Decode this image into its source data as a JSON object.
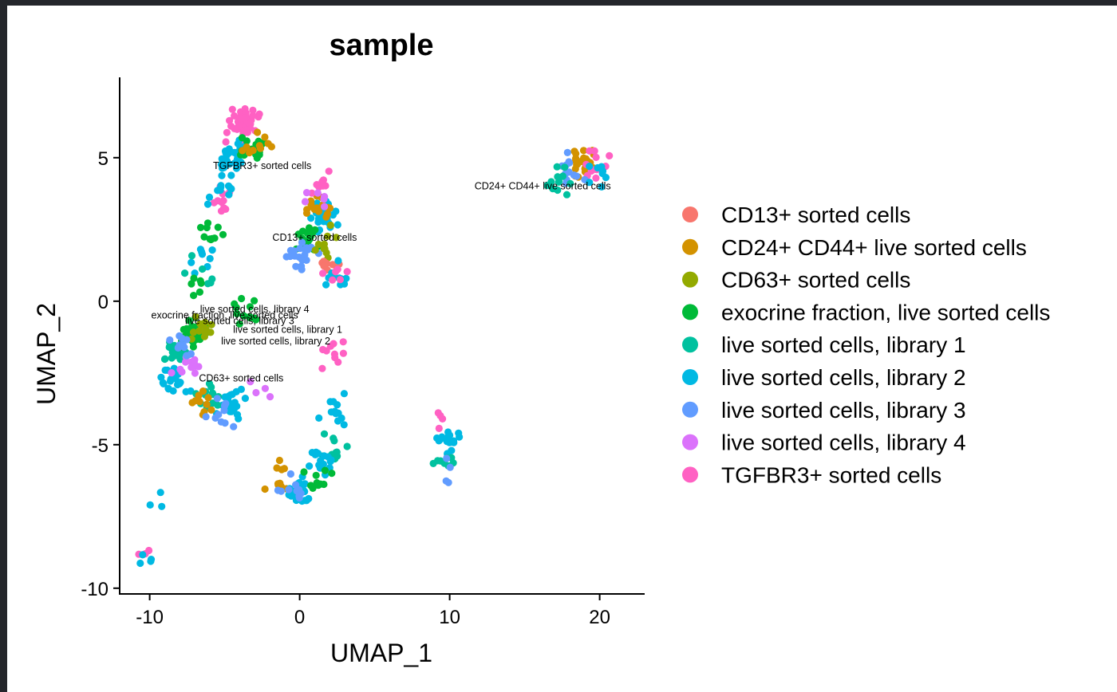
{
  "chart_data": {
    "type": "scatter",
    "title": "sample",
    "xlabel": "UMAP_1",
    "ylabel": "UMAP_2",
    "xlim": [
      -12,
      23
    ],
    "ylim": [
      -10.2,
      7.8
    ],
    "xticks": [
      -10,
      0,
      10,
      20
    ],
    "xtick_labels": [
      "-10",
      "0",
      "10",
      "20"
    ],
    "yticks": [
      -10,
      -5,
      0,
      5
    ],
    "ytick_labels": [
      "-10",
      "-5",
      "0",
      "5"
    ],
    "grid": false,
    "legend_position": "right",
    "series": [
      {
        "name": "CD13+ sorted cells",
        "color": "#F8766D"
      },
      {
        "name": "CD24+ CD44+ live sorted cells",
        "color": "#D39200"
      },
      {
        "name": "CD63+ sorted cells",
        "color": "#93AA00"
      },
      {
        "name": "exocrine fraction, live sorted cells",
        "color": "#00BA38"
      },
      {
        "name": "live sorted cells, library 1",
        "color": "#00C19F"
      },
      {
        "name": "live sorted cells, library 2",
        "color": "#00B9E3"
      },
      {
        "name": "live sorted cells, library 3",
        "color": "#619CFF"
      },
      {
        "name": "live sorted cells, library 4",
        "color": "#DB72FB"
      },
      {
        "name": "TGFBR3+ sorted cells",
        "color": "#FF61C3"
      }
    ],
    "annotations": [
      {
        "text": "TGFBR3+ sorted cells",
        "x": -2.5,
        "y": 4.6
      },
      {
        "text": "CD24+ CD44+ live sorted cells",
        "x": 16.2,
        "y": 3.9
      },
      {
        "text": "CD13+ sorted cells",
        "x": 1.0,
        "y": 2.1
      },
      {
        "text": "live sorted cells, library 4",
        "x": -3.0,
        "y": -0.4
      },
      {
        "text": "exocrine fraction, live sorted cells",
        "x": -5.0,
        "y": -0.6
      },
      {
        "text": "live sorted cells, library 3",
        "x": -4.0,
        "y": -0.8
      },
      {
        "text": "live sorted cells, library 1",
        "x": -0.8,
        "y": -1.1
      },
      {
        "text": "live sorted cells, library 2",
        "x": -1.6,
        "y": -1.5
      },
      {
        "text": "CD63+ sorted cells",
        "x": -3.9,
        "y": -2.8
      }
    ],
    "clusters": [
      {
        "series": 8,
        "x": -3.8,
        "y": 6.2,
        "n": 45
      },
      {
        "series": 5,
        "x": -4.5,
        "y": 5.0,
        "n": 30
      },
      {
        "series": 3,
        "x": -3.2,
        "y": 5.3,
        "n": 20
      },
      {
        "series": 1,
        "x": -2.8,
        "y": 5.4,
        "n": 10
      },
      {
        "series": 8,
        "x": -5.2,
        "y": 3.5,
        "n": 10
      },
      {
        "series": 5,
        "x": -5.3,
        "y": 3.8,
        "n": 12
      },
      {
        "series": 3,
        "x": -5.6,
        "y": 2.5,
        "n": 10
      },
      {
        "series": 5,
        "x": -6.4,
        "y": 1.4,
        "n": 8
      },
      {
        "series": 4,
        "x": -6.5,
        "y": 1.0,
        "n": 6
      },
      {
        "series": 3,
        "x": -6.8,
        "y": 0.6,
        "n": 6
      },
      {
        "series": 5,
        "x": 1.5,
        "y": 3.0,
        "n": 30
      },
      {
        "series": 1,
        "x": 1.2,
        "y": 3.2,
        "n": 15
      },
      {
        "series": 3,
        "x": 0.5,
        "y": 2.2,
        "n": 20
      },
      {
        "series": 6,
        "x": 0.2,
        "y": 1.6,
        "n": 20
      },
      {
        "series": 2,
        "x": 1.8,
        "y": 2.0,
        "n": 10
      },
      {
        "series": 8,
        "x": 1.5,
        "y": 4.0,
        "n": 8
      },
      {
        "series": 0,
        "x": 2.0,
        "y": 1.2,
        "n": 10
      },
      {
        "series": 7,
        "x": 1.0,
        "y": 3.5,
        "n": 6
      },
      {
        "series": 5,
        "x": 2.2,
        "y": 0.8,
        "n": 10
      },
      {
        "series": 8,
        "x": 2.1,
        "y": 1.0,
        "n": 6
      },
      {
        "series": 1,
        "x": 18.8,
        "y": 4.8,
        "n": 25
      },
      {
        "series": 8,
        "x": 19.8,
        "y": 4.8,
        "n": 14
      },
      {
        "series": 6,
        "x": 18.2,
        "y": 4.6,
        "n": 12
      },
      {
        "series": 4,
        "x": 17.0,
        "y": 4.2,
        "n": 12
      },
      {
        "series": 5,
        "x": 20.2,
        "y": 4.5,
        "n": 8
      },
      {
        "series": 3,
        "x": -7.0,
        "y": -1.2,
        "n": 35
      },
      {
        "series": 2,
        "x": -6.6,
        "y": -1.0,
        "n": 12
      },
      {
        "series": 4,
        "x": -8.0,
        "y": -1.8,
        "n": 18
      },
      {
        "series": 5,
        "x": -8.5,
        "y": -2.8,
        "n": 20
      },
      {
        "series": 7,
        "x": -7.5,
        "y": -2.2,
        "n": 12
      },
      {
        "series": 6,
        "x": -7.8,
        "y": -1.5,
        "n": 12
      },
      {
        "series": 3,
        "x": -3.5,
        "y": -0.4,
        "n": 12
      },
      {
        "series": 5,
        "x": -4.5,
        "y": -3.6,
        "n": 25
      },
      {
        "series": 4,
        "x": -6.0,
        "y": -3.3,
        "n": 15
      },
      {
        "series": 1,
        "x": -6.5,
        "y": -3.5,
        "n": 10
      },
      {
        "series": 6,
        "x": -5.2,
        "y": -3.8,
        "n": 10
      },
      {
        "series": 7,
        "x": -2.8,
        "y": -3.2,
        "n": 4
      },
      {
        "series": 8,
        "x": 2.2,
        "y": -1.8,
        "n": 10
      },
      {
        "series": 5,
        "x": 2.2,
        "y": -3.8,
        "n": 12
      },
      {
        "series": 4,
        "x": 2.0,
        "y": -5.2,
        "n": 12
      },
      {
        "series": 5,
        "x": 1.5,
        "y": -5.6,
        "n": 15
      },
      {
        "series": 1,
        "x": -1.5,
        "y": -6.2,
        "n": 12
      },
      {
        "series": 5,
        "x": 0.0,
        "y": -6.6,
        "n": 25
      },
      {
        "series": 6,
        "x": -0.5,
        "y": -6.5,
        "n": 10
      },
      {
        "series": 3,
        "x": 1.2,
        "y": -6.2,
        "n": 10
      },
      {
        "series": 5,
        "x": 9.9,
        "y": -4.9,
        "n": 18
      },
      {
        "series": 4,
        "x": 9.8,
        "y": -5.6,
        "n": 8
      },
      {
        "series": 8,
        "x": 9.9,
        "y": -3.9,
        "n": 4
      },
      {
        "series": 6,
        "x": 9.9,
        "y": -6.0,
        "n": 4
      },
      {
        "series": 5,
        "x": -9.6,
        "y": -6.7,
        "n": 3
      },
      {
        "series": 8,
        "x": -10.3,
        "y": -8.8,
        "n": 3
      },
      {
        "series": 5,
        "x": -10.6,
        "y": -9.1,
        "n": 4
      }
    ]
  }
}
